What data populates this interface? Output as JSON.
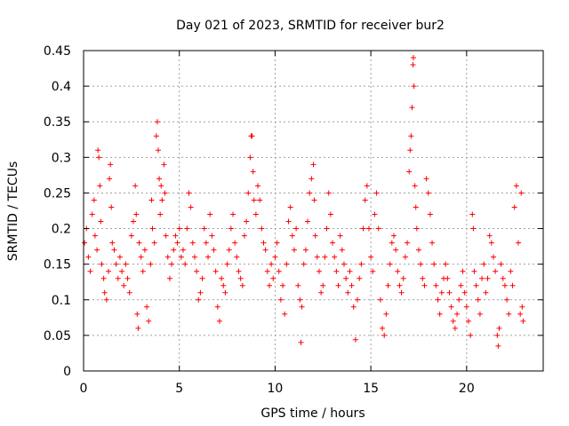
{
  "chart_data": {
    "type": "scatter",
    "title": "Day 021 of 2023, SRMTID for receiver bur2",
    "xlabel": "GPS time / hours",
    "ylabel": "SRMTID / TECUs",
    "xlim": [
      0,
      24
    ],
    "ylim": [
      0,
      0.45
    ],
    "xticks": [
      0,
      5,
      10,
      15,
      20
    ],
    "xtick_labels": [
      "0",
      "5",
      "10",
      "15",
      "20"
    ],
    "yticks": [
      0,
      0.05,
      0.1,
      0.15,
      0.2,
      0.25,
      0.3,
      0.35,
      0.4,
      0.45
    ],
    "ytick_labels": [
      "0",
      "0.05",
      "0.1",
      "0.15",
      "0.2",
      "0.25",
      "0.3",
      "0.35",
      "0.4",
      "0.45"
    ],
    "grid": true,
    "marker": "+",
    "marker_color": "#ff0000",
    "series": [
      {
        "name": "SRMTID",
        "points": [
          [
            0.05,
            0.18
          ],
          [
            0.15,
            0.2
          ],
          [
            0.25,
            0.16
          ],
          [
            0.35,
            0.14
          ],
          [
            0.45,
            0.22
          ],
          [
            0.55,
            0.24
          ],
          [
            0.6,
            0.19
          ],
          [
            0.7,
            0.17
          ],
          [
            0.75,
            0.31
          ],
          [
            0.8,
            0.3
          ],
          [
            0.85,
            0.26
          ],
          [
            0.9,
            0.21
          ],
          [
            0.95,
            0.15
          ],
          [
            1.05,
            0.13
          ],
          [
            1.1,
            0.11
          ],
          [
            1.2,
            0.1
          ],
          [
            1.3,
            0.14
          ],
          [
            1.35,
            0.27
          ],
          [
            1.4,
            0.29
          ],
          [
            1.45,
            0.23
          ],
          [
            1.5,
            0.18
          ],
          [
            1.6,
            0.17
          ],
          [
            1.7,
            0.15
          ],
          [
            1.8,
            0.13
          ],
          [
            1.9,
            0.16
          ],
          [
            2.0,
            0.14
          ],
          [
            2.1,
            0.12
          ],
          [
            2.2,
            0.15
          ],
          [
            2.3,
            0.13
          ],
          [
            2.4,
            0.11
          ],
          [
            2.5,
            0.19
          ],
          [
            2.6,
            0.21
          ],
          [
            2.7,
            0.26
          ],
          [
            2.75,
            0.22
          ],
          [
            2.8,
            0.08
          ],
          [
            2.85,
            0.06
          ],
          [
            2.9,
            0.18
          ],
          [
            3.0,
            0.16
          ],
          [
            3.1,
            0.14
          ],
          [
            3.2,
            0.17
          ],
          [
            3.3,
            0.09
          ],
          [
            3.4,
            0.07
          ],
          [
            3.5,
            0.15
          ],
          [
            3.55,
            0.24
          ],
          [
            3.6,
            0.2
          ],
          [
            3.7,
            0.18
          ],
          [
            3.8,
            0.33
          ],
          [
            3.85,
            0.35
          ],
          [
            3.9,
            0.31
          ],
          [
            3.95,
            0.27
          ],
          [
            4.0,
            0.22
          ],
          [
            4.05,
            0.26
          ],
          [
            4.1,
            0.24
          ],
          [
            4.2,
            0.29
          ],
          [
            4.25,
            0.25
          ],
          [
            4.3,
            0.19
          ],
          [
            4.4,
            0.16
          ],
          [
            4.5,
            0.13
          ],
          [
            4.6,
            0.15
          ],
          [
            4.7,
            0.17
          ],
          [
            4.8,
            0.19
          ],
          [
            4.9,
            0.18
          ],
          [
            5.0,
            0.2
          ],
          [
            5.1,
            0.16
          ],
          [
            5.2,
            0.17
          ],
          [
            5.3,
            0.15
          ],
          [
            5.4,
            0.2
          ],
          [
            5.5,
            0.25
          ],
          [
            5.6,
            0.23
          ],
          [
            5.7,
            0.18
          ],
          [
            5.8,
            0.16
          ],
          [
            5.9,
            0.14
          ],
          [
            6.0,
            0.1
          ],
          [
            6.1,
            0.11
          ],
          [
            6.2,
            0.13
          ],
          [
            6.3,
            0.2
          ],
          [
            6.4,
            0.18
          ],
          [
            6.5,
            0.16
          ],
          [
            6.6,
            0.22
          ],
          [
            6.7,
            0.19
          ],
          [
            6.8,
            0.17
          ],
          [
            6.9,
            0.14
          ],
          [
            7.0,
            0.09
          ],
          [
            7.1,
            0.07
          ],
          [
            7.2,
            0.13
          ],
          [
            7.3,
            0.12
          ],
          [
            7.4,
            0.11
          ],
          [
            7.5,
            0.15
          ],
          [
            7.6,
            0.17
          ],
          [
            7.7,
            0.2
          ],
          [
            7.8,
            0.22
          ],
          [
            7.9,
            0.18
          ],
          [
            8.0,
            0.16
          ],
          [
            8.1,
            0.14
          ],
          [
            8.2,
            0.13
          ],
          [
            8.3,
            0.12
          ],
          [
            8.4,
            0.19
          ],
          [
            8.5,
            0.21
          ],
          [
            8.6,
            0.25
          ],
          [
            8.7,
            0.3
          ],
          [
            8.75,
            0.33
          ],
          [
            8.8,
            0.33
          ],
          [
            8.85,
            0.28
          ],
          [
            8.9,
            0.24
          ],
          [
            9.0,
            0.22
          ],
          [
            9.1,
            0.26
          ],
          [
            9.2,
            0.24
          ],
          [
            9.3,
            0.2
          ],
          [
            9.4,
            0.18
          ],
          [
            9.5,
            0.17
          ],
          [
            9.6,
            0.14
          ],
          [
            9.7,
            0.12
          ],
          [
            9.8,
            0.15
          ],
          [
            9.9,
            0.13
          ],
          [
            10.0,
            0.16
          ],
          [
            10.1,
            0.18
          ],
          [
            10.2,
            0.14
          ],
          [
            10.3,
            0.1
          ],
          [
            10.4,
            0.12
          ],
          [
            10.5,
            0.08
          ],
          [
            10.6,
            0.15
          ],
          [
            10.7,
            0.21
          ],
          [
            10.8,
            0.23
          ],
          [
            10.9,
            0.19
          ],
          [
            11.0,
            0.17
          ],
          [
            11.1,
            0.2
          ],
          [
            11.2,
            0.12
          ],
          [
            11.3,
            0.1
          ],
          [
            11.35,
            0.04
          ],
          [
            11.4,
            0.09
          ],
          [
            11.5,
            0.15
          ],
          [
            11.6,
            0.17
          ],
          [
            11.7,
            0.21
          ],
          [
            11.8,
            0.25
          ],
          [
            11.9,
            0.27
          ],
          [
            12.0,
            0.29
          ],
          [
            12.05,
            0.24
          ],
          [
            12.1,
            0.19
          ],
          [
            12.2,
            0.16
          ],
          [
            12.3,
            0.14
          ],
          [
            12.4,
            0.11
          ],
          [
            12.5,
            0.12
          ],
          [
            12.6,
            0.16
          ],
          [
            12.7,
            0.2
          ],
          [
            12.8,
            0.25
          ],
          [
            12.9,
            0.22
          ],
          [
            13.0,
            0.18
          ],
          [
            13.1,
            0.16
          ],
          [
            13.2,
            0.14
          ],
          [
            13.3,
            0.12
          ],
          [
            13.4,
            0.19
          ],
          [
            13.5,
            0.17
          ],
          [
            13.6,
            0.15
          ],
          [
            13.7,
            0.13
          ],
          [
            13.8,
            0.11
          ],
          [
            13.9,
            0.14
          ],
          [
            14.0,
            0.12
          ],
          [
            14.1,
            0.09
          ],
          [
            14.2,
            0.044
          ],
          [
            14.3,
            0.1
          ],
          [
            14.4,
            0.13
          ],
          [
            14.5,
            0.15
          ],
          [
            14.6,
            0.2
          ],
          [
            14.7,
            0.24
          ],
          [
            14.8,
            0.26
          ],
          [
            14.9,
            0.2
          ],
          [
            15.0,
            0.16
          ],
          [
            15.1,
            0.14
          ],
          [
            15.2,
            0.22
          ],
          [
            15.3,
            0.25
          ],
          [
            15.4,
            0.2
          ],
          [
            15.5,
            0.1
          ],
          [
            15.6,
            0.06
          ],
          [
            15.7,
            0.05
          ],
          [
            15.8,
            0.08
          ],
          [
            15.9,
            0.12
          ],
          [
            16.0,
            0.15
          ],
          [
            16.1,
            0.18
          ],
          [
            16.2,
            0.19
          ],
          [
            16.3,
            0.17
          ],
          [
            16.4,
            0.14
          ],
          [
            16.5,
            0.12
          ],
          [
            16.6,
            0.11
          ],
          [
            16.7,
            0.13
          ],
          [
            16.8,
            0.16
          ],
          [
            16.9,
            0.18
          ],
          [
            17.0,
            0.28
          ],
          [
            17.05,
            0.31
          ],
          [
            17.1,
            0.33
          ],
          [
            17.15,
            0.37
          ],
          [
            17.2,
            0.43
          ],
          [
            17.22,
            0.44
          ],
          [
            17.25,
            0.4
          ],
          [
            17.3,
            0.26
          ],
          [
            17.35,
            0.23
          ],
          [
            17.4,
            0.2
          ],
          [
            17.5,
            0.17
          ],
          [
            17.6,
            0.15
          ],
          [
            17.7,
            0.13
          ],
          [
            17.8,
            0.12
          ],
          [
            17.9,
            0.27
          ],
          [
            18.0,
            0.25
          ],
          [
            18.1,
            0.22
          ],
          [
            18.2,
            0.18
          ],
          [
            18.3,
            0.15
          ],
          [
            18.4,
            0.12
          ],
          [
            18.5,
            0.1
          ],
          [
            18.6,
            0.08
          ],
          [
            18.7,
            0.11
          ],
          [
            18.8,
            0.13
          ],
          [
            18.9,
            0.15
          ],
          [
            19.0,
            0.13
          ],
          [
            19.1,
            0.11
          ],
          [
            19.2,
            0.09
          ],
          [
            19.3,
            0.07
          ],
          [
            19.4,
            0.06
          ],
          [
            19.5,
            0.08
          ],
          [
            19.6,
            0.1
          ],
          [
            19.7,
            0.12
          ],
          [
            19.8,
            0.14
          ],
          [
            19.9,
            0.11
          ],
          [
            20.0,
            0.09
          ],
          [
            20.1,
            0.07
          ],
          [
            20.2,
            0.05
          ],
          [
            20.3,
            0.22
          ],
          [
            20.35,
            0.2
          ],
          [
            20.4,
            0.14
          ],
          [
            20.5,
            0.12
          ],
          [
            20.6,
            0.1
          ],
          [
            20.7,
            0.08
          ],
          [
            20.8,
            0.13
          ],
          [
            20.9,
            0.15
          ],
          [
            21.0,
            0.11
          ],
          [
            21.1,
            0.13
          ],
          [
            21.2,
            0.19
          ],
          [
            21.3,
            0.18
          ],
          [
            21.4,
            0.16
          ],
          [
            21.5,
            0.14
          ],
          [
            21.6,
            0.05
          ],
          [
            21.65,
            0.035
          ],
          [
            21.7,
            0.06
          ],
          [
            21.8,
            0.15
          ],
          [
            21.9,
            0.13
          ],
          [
            22.0,
            0.12
          ],
          [
            22.1,
            0.1
          ],
          [
            22.2,
            0.08
          ],
          [
            22.3,
            0.14
          ],
          [
            22.4,
            0.12
          ],
          [
            22.5,
            0.23
          ],
          [
            22.6,
            0.26
          ],
          [
            22.7,
            0.18
          ],
          [
            22.8,
            0.08
          ],
          [
            22.85,
            0.25
          ],
          [
            22.9,
            0.09
          ],
          [
            22.95,
            0.07
          ]
        ]
      }
    ]
  }
}
